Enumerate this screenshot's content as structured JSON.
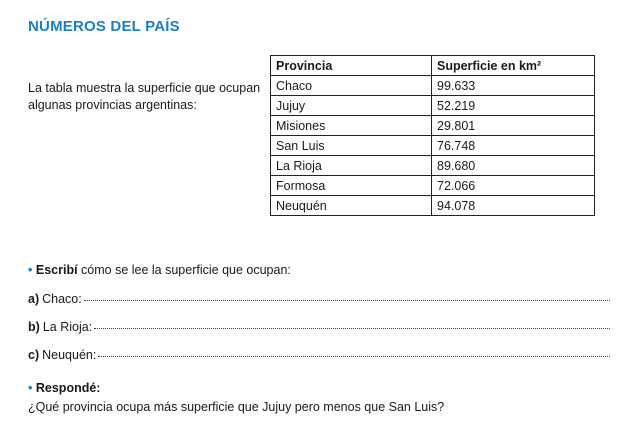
{
  "title": "NÚMEROS DEL PAÍS",
  "intro": "La tabla muestra la superficie que ocupan algunas provincias argentinas:",
  "table": {
    "headers": [
      "Provincia",
      "Superficie en km²"
    ],
    "rows": [
      [
        "Chaco",
        "99.633"
      ],
      [
        "Jujuy",
        "52.219"
      ],
      [
        "Misiones",
        "29.801"
      ],
      [
        "San Luis",
        "76.748"
      ],
      [
        "La Rioja",
        "89.680"
      ],
      [
        "Formosa",
        "72.066"
      ],
      [
        "Neuquén",
        "94.078"
      ]
    ]
  },
  "bullet_symbol": "•",
  "task1": {
    "verb": "Escribí",
    "rest": " cómo se lee la superficie que ocupan:",
    "items": [
      {
        "letter": "a)",
        "label": " Chaco:"
      },
      {
        "letter": "b)",
        "label": " La Rioja: "
      },
      {
        "letter": "c)",
        "label": " Neuquén:"
      }
    ]
  },
  "task2": {
    "verb": "Respondé:",
    "question": "¿Qué provincia ocupa más superficie que Jujuy pero menos que San Luis?"
  }
}
